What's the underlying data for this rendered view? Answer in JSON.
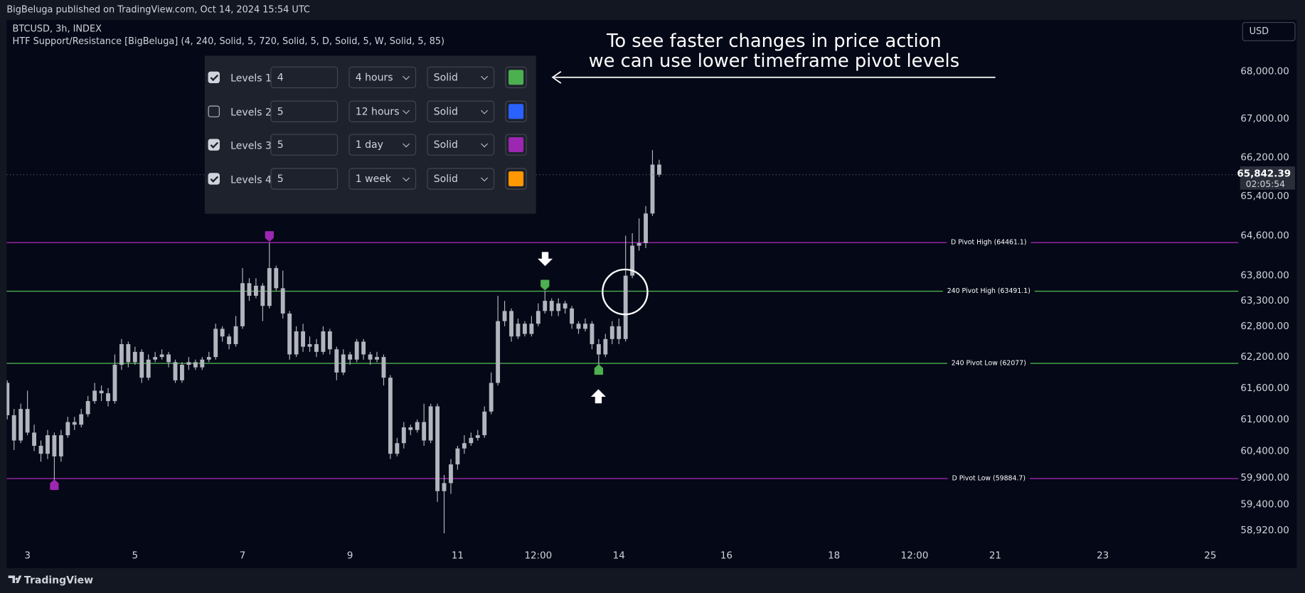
{
  "header": {
    "published": "BigBeluga published on TradingView.com, Oct 14, 2024 15:54 UTC"
  },
  "footer": {
    "brand": "TradingView"
  },
  "currency_button": "USD",
  "legend": {
    "symbol": "BTCUSD, 3h, INDEX",
    "indicator": "HTF Support/Resistance [BigBeluga] (4, 240, Solid, 5, 720, Solid, 5, D, Solid, 5, W, Solid, 5, 85)"
  },
  "settings_panel": {
    "rows": [
      {
        "checked": true,
        "label": "Levels 1",
        "length": 4,
        "timeframe": "4 hours",
        "style": "Solid",
        "color": "#4caf50"
      },
      {
        "checked": false,
        "label": "Levels 2",
        "length": 5,
        "timeframe": "12 hours",
        "style": "Solid",
        "color": "#2962ff"
      },
      {
        "checked": true,
        "label": "Levels 3",
        "length": 5,
        "timeframe": "1 day",
        "style": "Solid",
        "color": "#9c27b0"
      },
      {
        "checked": true,
        "label": "Levels 4",
        "length": 5,
        "timeframe": "1 week",
        "style": "Solid",
        "color": "#ff9800"
      }
    ]
  },
  "chart_data": {
    "type": "candlestick",
    "annotation": [
      "To see faster changes in price action",
      "we can use lower timeframe pivot levels"
    ],
    "color": "#b2b5be",
    "log_scale": true,
    "x": [
      2.625,
      2.75,
      2.875,
      3,
      3.125,
      3.25,
      3.375,
      3.5,
      3.625,
      3.75,
      3.875,
      4,
      4.125,
      4.25,
      4.375,
      4.5,
      4.625,
      4.75,
      4.875,
      5,
      5.125,
      5.25,
      5.375,
      5.5,
      5.625,
      5.75,
      5.875,
      6,
      6.125,
      6.25,
      6.375,
      6.5,
      6.625,
      6.75,
      6.875,
      7,
      7.125,
      7.25,
      7.375,
      7.5,
      7.625,
      7.75,
      7.875,
      8,
      8.125,
      8.25,
      8.375,
      8.5,
      8.625,
      8.75,
      8.875,
      9,
      9.125,
      9.25,
      9.375,
      9.5,
      9.625,
      9.75,
      9.875,
      10,
      10.125,
      10.25,
      10.375,
      10.5,
      10.625,
      10.75,
      10.875,
      11,
      11.125,
      11.25,
      11.375,
      11.5,
      11.625,
      11.75,
      11.875,
      12,
      12.125,
      12.25,
      12.375,
      12.5,
      12.625,
      12.75,
      12.875,
      13,
      13.125,
      13.25,
      13.375,
      13.5,
      13.625,
      13.75,
      13.875,
      14,
      14.125,
      14.25,
      14.375,
      14.5,
      14.625,
      14.75
    ],
    "open": [
      61700,
      61080,
      60600,
      61200,
      60750,
      60500,
      60350,
      60700,
      60300,
      60700,
      60950,
      60900,
      61100,
      61350,
      61550,
      61500,
      61350,
      62050,
      62450,
      62100,
      62300,
      61800,
      62150,
      62200,
      62250,
      62100,
      61750,
      62050,
      62100,
      62000,
      62150,
      62200,
      62750,
      62600,
      62450,
      62800,
      63650,
      63400,
      63600,
      63200,
      63950,
      63550,
      63050,
      62250,
      62700,
      62400,
      62450,
      62300,
      62700,
      62350,
      61900,
      62250,
      62150,
      62500,
      62250,
      62150,
      62200,
      61800,
      60350,
      60550,
      60850,
      60800,
      60950,
      60600,
      61250,
      59650,
      59800,
      60150,
      60450,
      60550,
      60650,
      60700,
      61150,
      61700,
      62900,
      63100,
      62600,
      62850,
      62650,
      62850,
      63100,
      63300,
      63100,
      63250,
      63150,
      62850,
      62750,
      62850,
      62450,
      62250,
      62550,
      62800,
      62550,
      63800,
      64400,
      64450,
      65050,
      66050
    ],
    "high": [
      61750,
      61200,
      61300,
      61550,
      60900,
      60600,
      60800,
      60750,
      60800,
      61050,
      61050,
      61200,
      61450,
      61700,
      61650,
      61600,
      62250,
      62550,
      62500,
      62400,
      62350,
      62250,
      62300,
      62350,
      62300,
      62150,
      62100,
      62200,
      62150,
      62200,
      62300,
      62850,
      62800,
      62650,
      63000,
      63950,
      63750,
      63750,
      63650,
      64460,
      64000,
      63900,
      63100,
      62800,
      62850,
      62600,
      62550,
      62800,
      62750,
      62400,
      62350,
      62300,
      62550,
      62550,
      62300,
      62300,
      62250,
      61850,
      60650,
      60950,
      60900,
      61000,
      61300,
      61300,
      61300,
      59950,
      60250,
      60500,
      60700,
      60750,
      60800,
      61250,
      61900,
      63400,
      63300,
      63150,
      62950,
      62900,
      63000,
      63250,
      63500,
      63350,
      63350,
      63300,
      63200,
      62900,
      62950,
      62900,
      62550,
      62650,
      62900,
      62950,
      64600,
      64650,
      64950,
      65200,
      66350,
      66150
    ],
    "low": [
      61000,
      60420,
      60550,
      60700,
      60400,
      60200,
      60250,
      59800,
      60200,
      60650,
      60800,
      60850,
      61050,
      61300,
      61350,
      61250,
      61300,
      61950,
      62000,
      62050,
      61700,
      61750,
      62100,
      62150,
      62000,
      61700,
      61700,
      61950,
      61950,
      61950,
      62100,
      62150,
      62500,
      62350,
      62400,
      62750,
      63300,
      63350,
      62900,
      63150,
      63500,
      62950,
      62150,
      62200,
      62300,
      62300,
      62200,
      62250,
      62250,
      61750,
      61850,
      62050,
      62100,
      62150,
      62050,
      62100,
      61650,
      60250,
      60300,
      60450,
      60700,
      60750,
      60500,
      60550,
      59450,
      58870,
      59600,
      60050,
      60350,
      60500,
      60600,
      60650,
      61100,
      61650,
      62800,
      62500,
      62550,
      62600,
      62600,
      62800,
      63050,
      63000,
      63000,
      63050,
      62750,
      62650,
      62700,
      62350,
      61950,
      62200,
      62450,
      62450,
      62500,
      63750,
      64300,
      64350,
      65000,
      65800
    ],
    "close": [
      61080,
      60600,
      61200,
      60750,
      60500,
      60350,
      60700,
      60300,
      60700,
      60950,
      60900,
      61100,
      61350,
      61550,
      61500,
      61350,
      62050,
      62450,
      62100,
      62300,
      61800,
      62150,
      62200,
      62250,
      62100,
      61750,
      62050,
      62100,
      62000,
      62150,
      62200,
      62750,
      62600,
      62450,
      62800,
      63650,
      63400,
      63600,
      63200,
      63950,
      63550,
      63050,
      62250,
      62700,
      62400,
      62450,
      62300,
      62700,
      62350,
      61900,
      62250,
      62150,
      62500,
      62250,
      62150,
      62200,
      61800,
      60350,
      60550,
      60850,
      60800,
      60950,
      60600,
      61250,
      59650,
      59800,
      60150,
      60450,
      60550,
      60650,
      60700,
      61150,
      61700,
      62900,
      63100,
      62600,
      62850,
      62650,
      62850,
      63100,
      63300,
      63100,
      63250,
      63150,
      62850,
      62750,
      62850,
      62450,
      62250,
      62550,
      62800,
      62550,
      63800,
      64400,
      64450,
      65050,
      66050,
      65842.39
    ],
    "last_price_label": "65,842.39",
    "countdown": "02:05:54",
    "levels": [
      {
        "label": "D Pivot High (64461.1)",
        "value": 64461.1,
        "x": 7.5,
        "color": "#9c27b0"
      },
      {
        "label": "240 Pivot High (63491.1)",
        "value": 63491.1,
        "x": 12.625,
        "color": "#4caf50"
      },
      {
        "label": "240 Pivot Low (62077)",
        "value": 62077,
        "x": 13.625,
        "color": "#4caf50"
      },
      {
        "label": "D Pivot Low (59884.7)",
        "value": 59884.7,
        "x": 3.5,
        "color": "#9c27b0"
      }
    ],
    "xlim": [
      2.613,
      25.523
    ],
    "xticks": [
      3,
      5,
      7,
      9,
      11,
      {
        "value": 12.5,
        "label": "12:00"
      },
      14,
      16,
      18,
      {
        "value": 19.5,
        "label": "12:00"
      },
      21,
      23,
      25
    ],
    "ylim": [
      58660,
      69100
    ],
    "yticks": [
      {
        "value": 68000,
        "label": "68,000.00"
      },
      {
        "value": 67000,
        "label": "67,000.00"
      },
      {
        "value": 66200,
        "label": "66,200.00"
      },
      {
        "value": 65400,
        "label": "65,400.00"
      },
      {
        "value": 64600,
        "label": "64,600.00"
      },
      {
        "value": 63800,
        "label": "63,800.00"
      },
      {
        "value": 63300,
        "label": "63,300.00"
      },
      {
        "value": 62800,
        "label": "62,800.00"
      },
      {
        "value": 62200,
        "label": "62,200.00"
      },
      {
        "value": 61600,
        "label": "61,600.00"
      },
      {
        "value": 61000,
        "label": "61,000.00"
      },
      {
        "value": 60400,
        "label": "60,400.00"
      },
      {
        "value": 59900,
        "label": "59,900.00"
      },
      {
        "value": 59400,
        "label": "59,400.00"
      },
      {
        "value": 58920,
        "label": "58,920.00"
      }
    ]
  }
}
